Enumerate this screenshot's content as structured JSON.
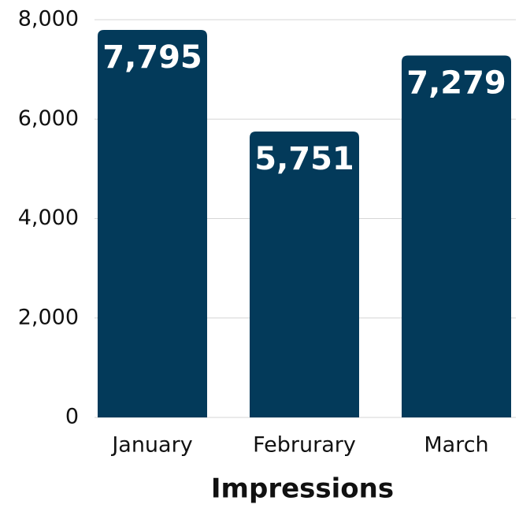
{
  "chart_data": {
    "type": "bar",
    "x_label": "Impressions",
    "categories": [
      "January",
      "Februrary",
      "March"
    ],
    "values": [
      7795,
      5751,
      7279
    ],
    "value_labels": [
      "7,795",
      "5,751",
      "7,279"
    ],
    "color": "#033a5a",
    "ylim": [
      0,
      8000
    ],
    "yticks": [
      0,
      {
        "value": 2000,
        "label": "2,000"
      },
      {
        "value": 4000,
        "label": "4,000"
      },
      {
        "value": 6000,
        "label": "6,000"
      },
      {
        "value": 8000,
        "label": "8,000"
      }
    ],
    "grid": true
  }
}
